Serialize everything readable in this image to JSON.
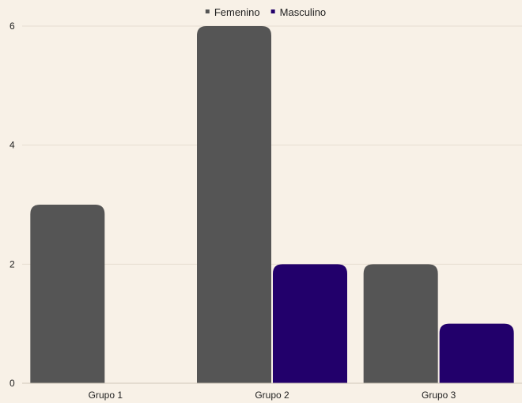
{
  "chart_data": {
    "type": "bar",
    "categories": [
      "Grupo 1",
      "Grupo 2",
      "Grupo 3"
    ],
    "series": [
      {
        "name": "Femenino",
        "values": [
          3,
          6,
          2
        ],
        "color": "#555555"
      },
      {
        "name": "Masculino",
        "values": [
          0,
          2,
          1
        ],
        "color": "#22006b"
      }
    ],
    "y_ticks": [
      "0",
      "2",
      "4",
      "6"
    ],
    "ylim": [
      0,
      6
    ],
    "grid": true,
    "legend_position": "top-center"
  }
}
